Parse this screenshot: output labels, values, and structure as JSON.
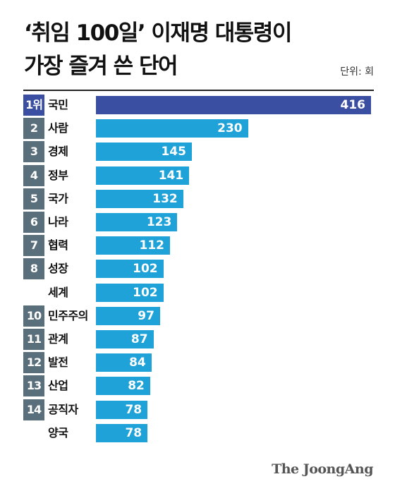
{
  "title_line1": "‘취임 100일’ 이재명 대통령이",
  "title_line2": "가장 즐겨 쓴 단어",
  "unit_label": "단위: 회",
  "logo": "The JoongAng",
  "colors": {
    "highlight_bar": "#3a4ea2",
    "bar": "#1fa2d8",
    "rank_box": "#5a6f7c"
  },
  "chart_data": {
    "type": "bar",
    "orientation": "horizontal",
    "title": "‘취임 100일’ 이재명 대통령이 가장 즐겨 쓴 단어",
    "unit": "단위: 회",
    "rows": [
      {
        "rank": "1위",
        "word": "국민",
        "value": 416
      },
      {
        "rank": "2",
        "word": "사람",
        "value": 230
      },
      {
        "rank": "3",
        "word": "경제",
        "value": 145
      },
      {
        "rank": "4",
        "word": "정부",
        "value": 141
      },
      {
        "rank": "5",
        "word": "국가",
        "value": 132
      },
      {
        "rank": "6",
        "word": "나라",
        "value": 123
      },
      {
        "rank": "7",
        "word": "협력",
        "value": 112
      },
      {
        "rank": "8",
        "word": "성장",
        "value": 102
      },
      {
        "rank": "",
        "word": "세계",
        "value": 102
      },
      {
        "rank": "10",
        "word": "민주주의",
        "value": 97
      },
      {
        "rank": "11",
        "word": "관계",
        "value": 87
      },
      {
        "rank": "12",
        "word": "발전",
        "value": 84
      },
      {
        "rank": "13",
        "word": "산업",
        "value": 82
      },
      {
        "rank": "14",
        "word": "공직자",
        "value": 78
      },
      {
        "rank": "",
        "word": "양국",
        "value": 78
      }
    ]
  }
}
